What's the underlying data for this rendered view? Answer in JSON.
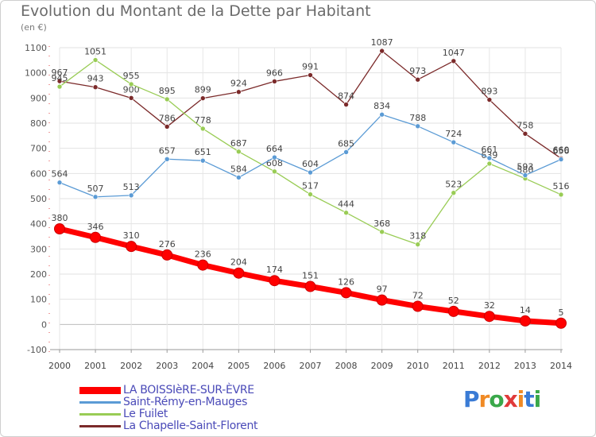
{
  "header": {
    "title": "Evolution du Montant de la Dette par Habitant",
    "subtitle": "(en €)"
  },
  "logo": {
    "text": "Proxiti"
  },
  "chart_data": {
    "type": "line",
    "title": "Evolution du Montant de la Dette par Habitant",
    "ylabel": "(en €)",
    "ylim": [
      -100,
      1100
    ],
    "yticks": [
      -100,
      0,
      100,
      200,
      300,
      400,
      500,
      600,
      700,
      800,
      900,
      1000,
      1100
    ],
    "x": [
      "2000",
      "2001",
      "2002",
      "2003",
      "2004",
      "2005",
      "2006",
      "2007",
      "2008",
      "2009",
      "2010",
      "2011",
      "2012",
      "2013",
      "2014"
    ],
    "grid": true,
    "legend_position": "bottom-left",
    "series": [
      {
        "name": "LA BOISSIèRE-SUR-ÈVRE",
        "color": "#ff0000",
        "values": [
          380,
          346,
          310,
          276,
          236,
          204,
          174,
          151,
          126,
          97,
          72,
          52,
          32,
          14,
          5
        ]
      },
      {
        "name": "Saint-Rémy-en-Mauges",
        "color": "#5b9bd5",
        "values": [
          564,
          507,
          513,
          657,
          651,
          584,
          664,
          604,
          685,
          834,
          788,
          724,
          661,
          593,
          656
        ]
      },
      {
        "name": "Le Fuilet",
        "color": "#99cc55",
        "values": [
          945,
          1051,
          955,
          895,
          778,
          687,
          608,
          517,
          444,
          368,
          318,
          523,
          639,
          580,
          516
        ]
      },
      {
        "name": "La Chapelle-Saint-Florent",
        "color": "#7b2a2a",
        "values": [
          967,
          943,
          900,
          786,
          899,
          924,
          966,
          991,
          874,
          1087,
          973,
          1047,
          893,
          758,
          660
        ]
      }
    ]
  }
}
